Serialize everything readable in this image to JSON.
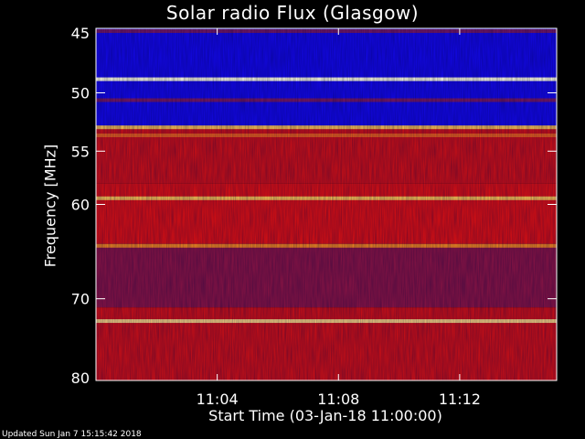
{
  "colors": {
    "background": "#000000",
    "text": "#ffffff",
    "axis": "#ffffff",
    "colormap": [
      "#0000ff",
      "#4b1fa8",
      "#a01020",
      "#e01010",
      "#ffb020",
      "#ffffe0"
    ]
  },
  "footer": {
    "text": "Updated Sun Jan  7 15:15:42 2018"
  },
  "chart_data": {
    "type": "heatmap",
    "title": "Solar radio Flux (Glasgow)",
    "xlabel": "Start Time (03-Jan-18 11:00:00)",
    "ylabel": "Frequency [MHz]",
    "x_range_minutes": [
      0,
      15.2
    ],
    "y_range_mhz": [
      45,
      80
    ],
    "y_scale": "log",
    "x_ticks": [
      {
        "value": 4,
        "label": "11:04"
      },
      {
        "value": 8,
        "label": "11:08"
      },
      {
        "value": 12,
        "label": "11:12"
      }
    ],
    "y_ticks": [
      {
        "value": 45,
        "label": "45"
      },
      {
        "value": 50,
        "label": "50"
      },
      {
        "value": 55,
        "label": "55"
      },
      {
        "value": 60,
        "label": "60"
      },
      {
        "value": 70,
        "label": "70"
      },
      {
        "value": 80,
        "label": "80"
      }
    ],
    "background_bands": [
      {
        "from_mhz": 45.0,
        "to_mhz": 53.0,
        "intensity": 0.05
      },
      {
        "from_mhz": 53.0,
        "to_mhz": 58.0,
        "intensity": 0.55
      },
      {
        "from_mhz": 58.0,
        "to_mhz": 64.0,
        "intensity": 0.6
      },
      {
        "from_mhz": 64.0,
        "to_mhz": 71.0,
        "intensity": 0.35
      },
      {
        "from_mhz": 71.0,
        "to_mhz": 80.0,
        "intensity": 0.55
      }
    ],
    "emission_lines": [
      {
        "freq_mhz": 45.2,
        "intensity": 0.3
      },
      {
        "freq_mhz": 48.9,
        "intensity": 1.0
      },
      {
        "freq_mhz": 50.6,
        "intensity": 0.3
      },
      {
        "freq_mhz": 52.9,
        "intensity": 0.85
      },
      {
        "freq_mhz": 53.6,
        "intensity": 0.7
      },
      {
        "freq_mhz": 59.4,
        "intensity": 0.85
      },
      {
        "freq_mhz": 64.2,
        "intensity": 0.75
      },
      {
        "freq_mhz": 72.6,
        "intensity": 0.9
      }
    ]
  }
}
